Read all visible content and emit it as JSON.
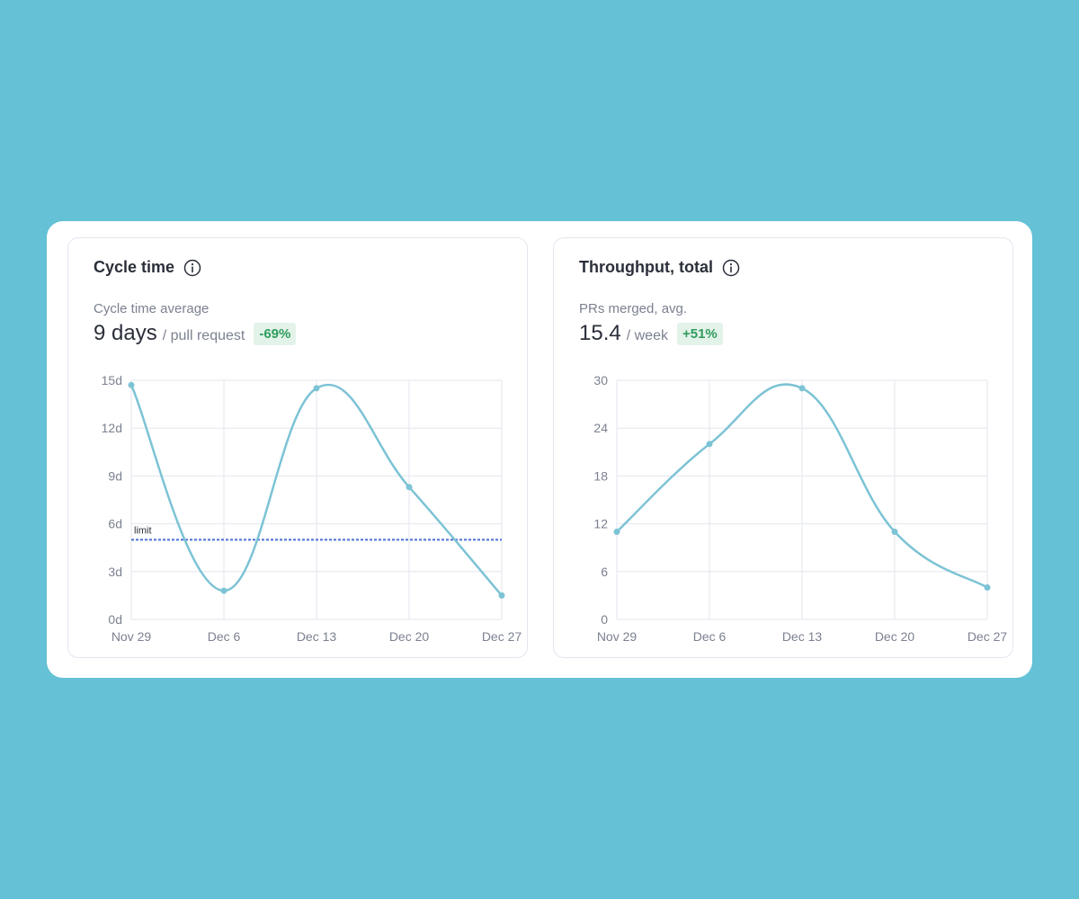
{
  "colors": {
    "background": "#64c1d6",
    "line": "#7cc3d5",
    "grid": "#e3e6ee",
    "limit": "#4a6fd1",
    "badge_bg": "#e3f3ea",
    "badge_text": "#2f9c5c"
  },
  "cycle": {
    "title": "Cycle time",
    "subtitle": "Cycle time average",
    "value": "9 days",
    "unit": "/ pull request",
    "delta": "-69%",
    "icon": "info-icon"
  },
  "throughput": {
    "title": "Throughput, total",
    "subtitle": "PRs merged, avg.",
    "value": "15.4",
    "unit": "/ week",
    "delta": "+51%",
    "icon": "info-icon"
  },
  "chart_data": [
    {
      "type": "line",
      "x": [
        "Nov 29",
        "Dec 6",
        "Dec 13",
        "Dec 20",
        "Dec 27"
      ],
      "values": [
        14.7,
        1.8,
        14.5,
        8.3,
        1.5
      ],
      "ylim": [
        0,
        15
      ],
      "yticks": [
        0,
        3,
        6,
        9,
        12,
        15
      ],
      "ytick_labels": [
        "0d",
        "3d",
        "6d",
        "9d",
        "12d",
        "15d"
      ],
      "limit": {
        "label": "limit",
        "value": 5
      },
      "grid": true,
      "smooth": true
    },
    {
      "type": "line",
      "x": [
        "Nov 29",
        "Dec 6",
        "Dec 13",
        "Dec 20",
        "Dec 27"
      ],
      "values": [
        11,
        22,
        29,
        11,
        4
      ],
      "ylim": [
        0,
        30
      ],
      "yticks": [
        0,
        6,
        12,
        18,
        24,
        30
      ],
      "ytick_labels": [
        "0",
        "6",
        "12",
        "18",
        "24",
        "30"
      ],
      "grid": true,
      "smooth": true
    }
  ]
}
